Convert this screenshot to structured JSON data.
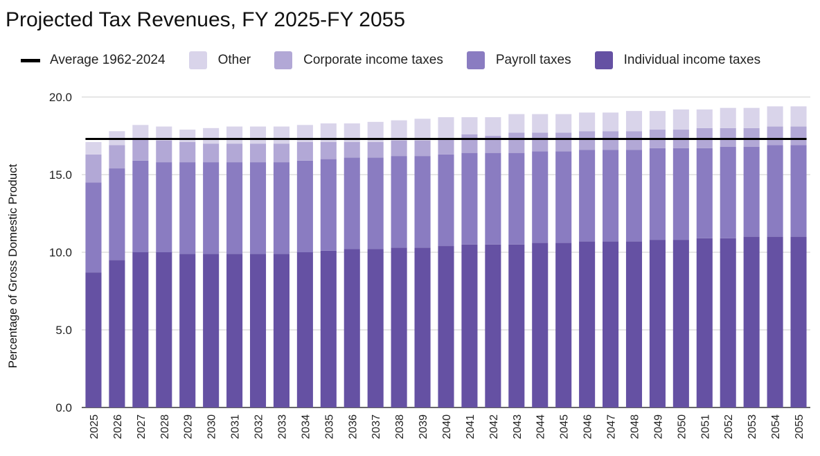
{
  "chart_data": {
    "type": "bar",
    "stacked": true,
    "title": "Projected Tax Revenues, FY 2025-FY 2055",
    "xlabel": "",
    "ylabel": "Percentage of Gross Domestic Product",
    "ylim": [
      0,
      20
    ],
    "yticks": [
      "0.0",
      "5.0",
      "10.0",
      "15.0",
      "20.0"
    ],
    "grid": true,
    "legend_position": "top",
    "categories": [
      "2025",
      "2026",
      "2027",
      "2028",
      "2029",
      "2030",
      "2031",
      "2032",
      "2033",
      "2034",
      "2035",
      "2036",
      "2037",
      "2038",
      "2039",
      "2040",
      "2041",
      "2042",
      "2043",
      "2044",
      "2045",
      "2046",
      "2047",
      "2048",
      "2049",
      "2050",
      "2051",
      "2052",
      "2053",
      "2054",
      "2055"
    ],
    "series": [
      {
        "name": "Individual income taxes",
        "color": "#6551a3",
        "values": [
          8.7,
          9.5,
          10.0,
          10.0,
          9.9,
          9.9,
          9.9,
          9.9,
          9.9,
          10.0,
          10.1,
          10.2,
          10.2,
          10.3,
          10.3,
          10.4,
          10.5,
          10.5,
          10.5,
          10.6,
          10.6,
          10.7,
          10.7,
          10.7,
          10.8,
          10.8,
          10.9,
          10.9,
          11.0,
          11.0,
          11.0
        ]
      },
      {
        "name": "Payroll taxes",
        "color": "#8a7cc1",
        "values": [
          5.8,
          5.9,
          5.9,
          5.8,
          5.9,
          5.9,
          5.9,
          5.9,
          5.9,
          5.9,
          5.9,
          5.9,
          5.9,
          5.9,
          5.9,
          5.9,
          5.9,
          5.9,
          5.9,
          5.9,
          5.9,
          5.9,
          5.9,
          5.9,
          5.9,
          5.9,
          5.8,
          5.9,
          5.8,
          5.9,
          5.9
        ]
      },
      {
        "name": "Corporate income taxes",
        "color": "#b2a8d6",
        "values": [
          1.8,
          1.5,
          1.4,
          1.4,
          1.3,
          1.2,
          1.2,
          1.2,
          1.2,
          1.2,
          1.1,
          1.0,
          1.0,
          1.0,
          1.0,
          1.0,
          1.2,
          1.1,
          1.3,
          1.2,
          1.2,
          1.2,
          1.2,
          1.2,
          1.2,
          1.2,
          1.3,
          1.2,
          1.2,
          1.2,
          1.2
        ]
      },
      {
        "name": "Other",
        "color": "#d9d4ea",
        "values": [
          0.8,
          0.9,
          0.9,
          0.9,
          0.8,
          1.0,
          1.1,
          1.1,
          1.1,
          1.1,
          1.2,
          1.2,
          1.3,
          1.3,
          1.4,
          1.4,
          1.1,
          1.2,
          1.2,
          1.2,
          1.2,
          1.2,
          1.2,
          1.3,
          1.2,
          1.3,
          1.2,
          1.3,
          1.3,
          1.3,
          1.3
        ]
      }
    ],
    "reference_line": {
      "name": "Average 1962-2024",
      "value": 17.3,
      "color": "#000000"
    }
  }
}
